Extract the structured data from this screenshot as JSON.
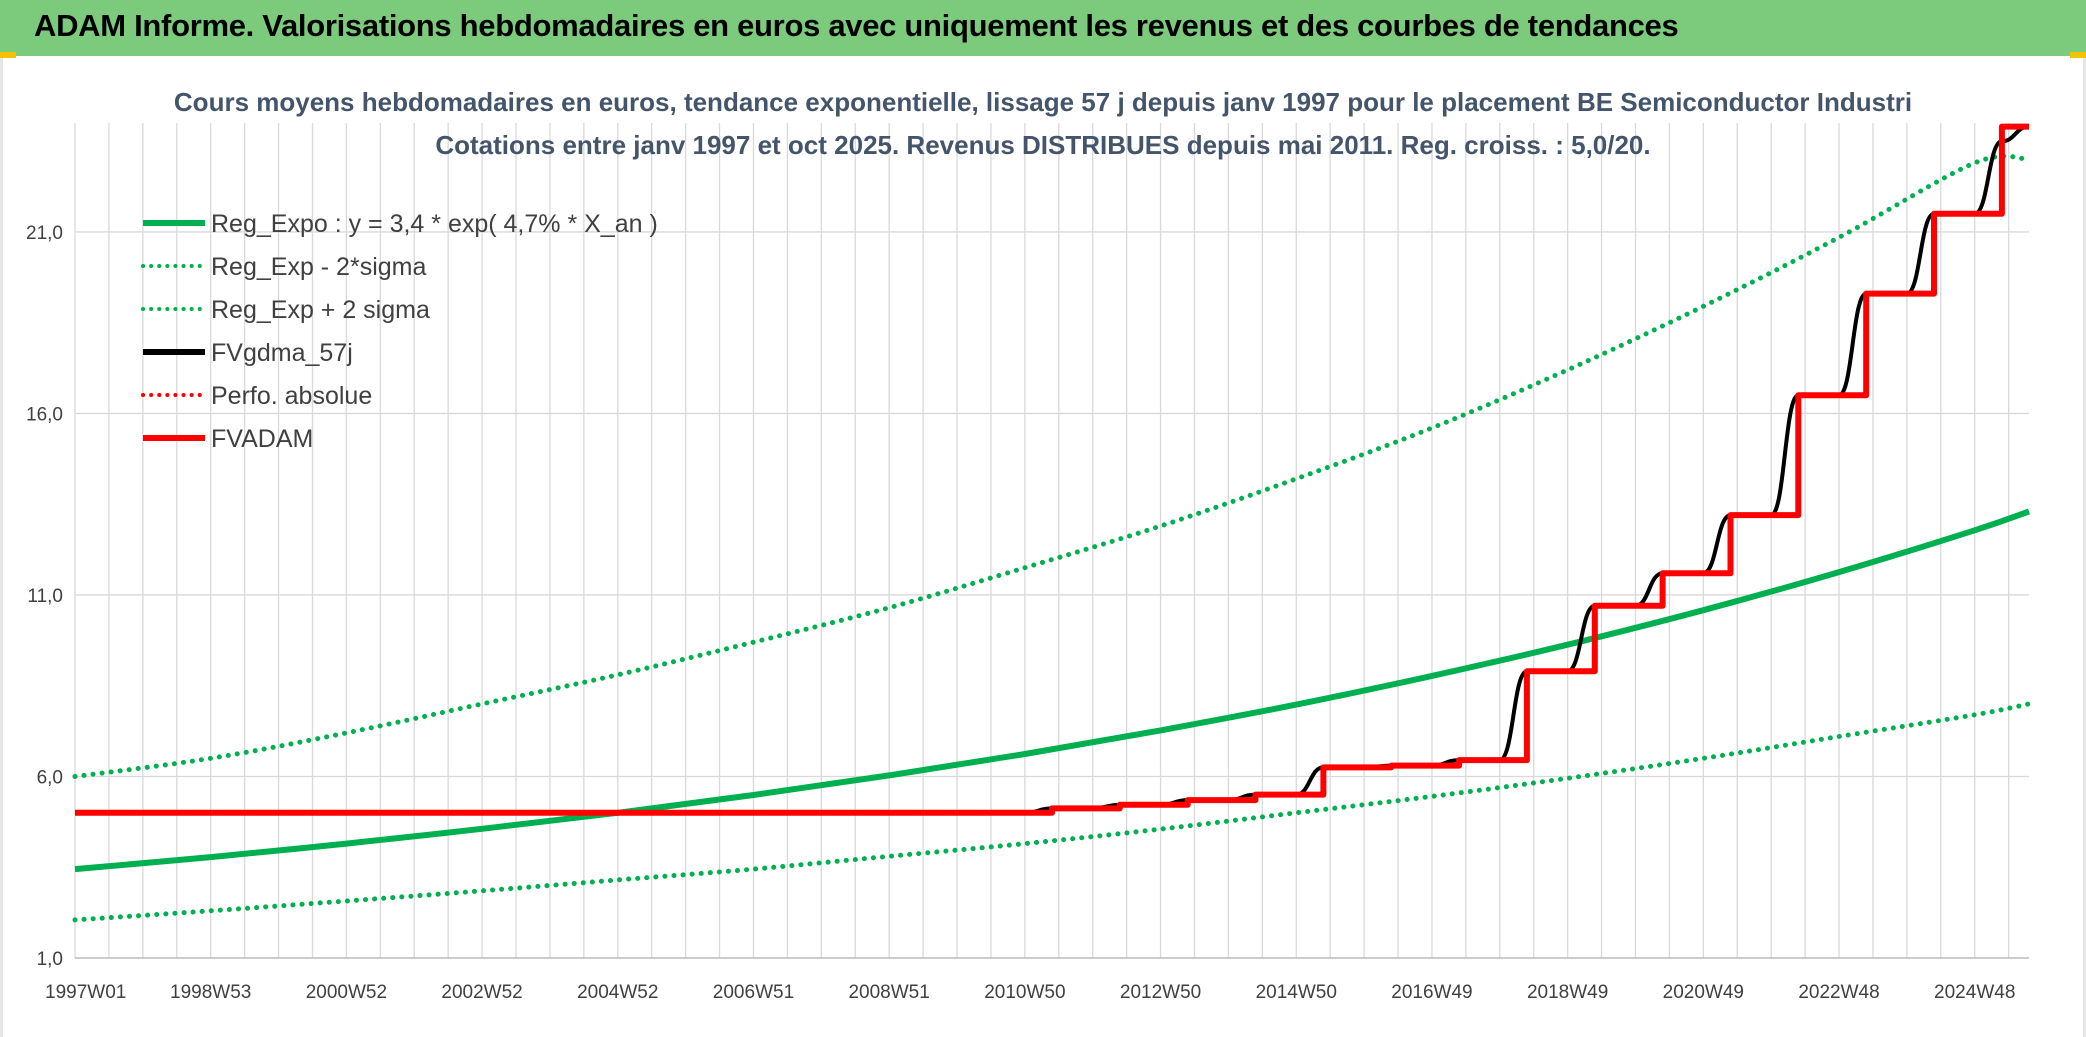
{
  "banner": {
    "title": "ADAM Informe. Valorisations hebdomadaires en euros avec uniquement les revenus et des courbes de tendances",
    "background": "#7ccb7c"
  },
  "chart_data": {
    "type": "line",
    "title": "Cours moyens hebdomadaires en euros, tendance exponentielle, lissage 57 j depuis janv 1997 pour le placement BE Semiconductor Industri",
    "subtitle": "Cotations entre janv 1997 et oct 2025. Revenus DISTRIBUES depuis mai 2011. Reg. croiss. : 5,0/20.",
    "xlabel": "",
    "ylabel": "",
    "xlim": [
      1997.0,
      2025.8
    ],
    "ylim": [
      1.0,
      24.0
    ],
    "yticks": [
      1.0,
      6.0,
      11.0,
      16.0,
      21.0
    ],
    "ytick_labels": [
      "1,0",
      "6,0",
      "11,0",
      "16,0",
      "21,0"
    ],
    "xtick_labels": [
      "1997W01",
      "1998W53",
      "2000W52",
      "2002W52",
      "2004W52",
      "2006W51",
      "2008W51",
      "2010W50",
      "2012W50",
      "2014W50",
      "2016W49",
      "2018W49",
      "2020W49",
      "2022W48",
      "2024W48"
    ],
    "xtick_years": [
      1997.0,
      1999.0,
      2001.0,
      2003.0,
      2005.0,
      2007.0,
      2009.0,
      2011.0,
      2013.0,
      2015.0,
      2017.0,
      2019.0,
      2021.0,
      2023.0,
      2025.0
    ],
    "grid": true,
    "legend_position": "top-left",
    "series": [
      {
        "name": "Reg_Expo : y = 3,4 * exp( 4,7% *  X_an )",
        "color": "#00b050",
        "style": "solid",
        "width": 6,
        "x": [
          1997.0,
          1999.0,
          2001.0,
          2003.0,
          2005.0,
          2007.0,
          2009.0,
          2011.0,
          2013.0,
          2015.0,
          2017.0,
          2019.0,
          2021.0,
          2023.0,
          2025.0,
          2025.8
        ],
        "y": [
          3.45,
          3.78,
          4.15,
          4.56,
          5.0,
          5.49,
          6.03,
          6.62,
          7.27,
          7.98,
          8.77,
          9.63,
          10.58,
          11.63,
          12.78,
          13.3
        ]
      },
      {
        "name": "Reg_Exp - 2*sigma",
        "color": "#00b050",
        "style": "dotted",
        "width": 5,
        "x": [
          1997.0,
          1999.0,
          2001.0,
          2003.0,
          2005.0,
          2007.0,
          2009.0,
          2011.0,
          2013.0,
          2015.0,
          2017.0,
          2019.0,
          2021.0,
          2023.0,
          2025.0,
          2025.8
        ],
        "y": [
          2.05,
          2.3,
          2.57,
          2.85,
          3.15,
          3.45,
          3.8,
          4.15,
          4.55,
          5.0,
          5.45,
          5.95,
          6.5,
          7.1,
          7.7,
          8.0
        ]
      },
      {
        "name": "Reg_Exp + 2 sigma",
        "color": "#00b050",
        "style": "dotted",
        "width": 5,
        "x": [
          1997.0,
          1999.0,
          2001.0,
          2003.0,
          2005.0,
          2007.0,
          2009.0,
          2011.0,
          2013.0,
          2015.0,
          2017.0,
          2019.0,
          2021.0,
          2023.0,
          2025.0,
          2025.8
        ],
        "y": [
          6.0,
          6.5,
          7.2,
          8.0,
          8.8,
          9.7,
          10.65,
          11.75,
          12.9,
          14.2,
          15.6,
          17.2,
          18.95,
          20.85,
          22.9,
          23.0
        ]
      },
      {
        "name": "FVgdma_57j",
        "color": "#000000",
        "style": "solid",
        "width": 4,
        "x": [
          1997.0,
          2011.0,
          2011.4,
          2012.0,
          2012.4,
          2013.0,
          2013.4,
          2014.0,
          2014.4,
          2015.0,
          2015.4,
          2016.0,
          2016.4,
          2017.0,
          2017.4,
          2018.0,
          2018.4,
          2019.0,
          2019.4,
          2020.0,
          2020.4,
          2021.0,
          2021.4,
          2022.0,
          2022.4,
          2023.0,
          2023.4,
          2024.0,
          2024.4,
          2025.0,
          2025.4,
          2025.8
        ],
        "y": [
          5.0,
          5.0,
          5.12,
          5.12,
          5.22,
          5.22,
          5.35,
          5.35,
          5.5,
          5.5,
          6.25,
          6.25,
          6.3,
          6.3,
          6.45,
          6.45,
          8.9,
          8.9,
          10.7,
          10.7,
          11.6,
          11.6,
          13.2,
          13.2,
          16.5,
          16.5,
          19.3,
          19.3,
          21.5,
          21.5,
          23.5,
          23.9
        ]
      },
      {
        "name": "Perfo. absolue",
        "color": "#ff0000",
        "style": "dotted",
        "width": 4,
        "x": [],
        "y": []
      },
      {
        "name": "FVADAM",
        "color": "#ff0000",
        "style": "step",
        "width": 6,
        "x": [
          1997.0,
          2011.4,
          2012.4,
          2013.4,
          2014.4,
          2015.4,
          2016.4,
          2017.4,
          2018.4,
          2019.4,
          2020.4,
          2021.4,
          2022.4,
          2023.4,
          2024.4,
          2025.4,
          2025.8
        ],
        "y": [
          5.0,
          5.12,
          5.22,
          5.35,
          5.5,
          6.25,
          6.3,
          6.45,
          8.9,
          10.7,
          11.6,
          13.2,
          16.5,
          19.3,
          21.5,
          23.9,
          23.9
        ]
      }
    ]
  }
}
